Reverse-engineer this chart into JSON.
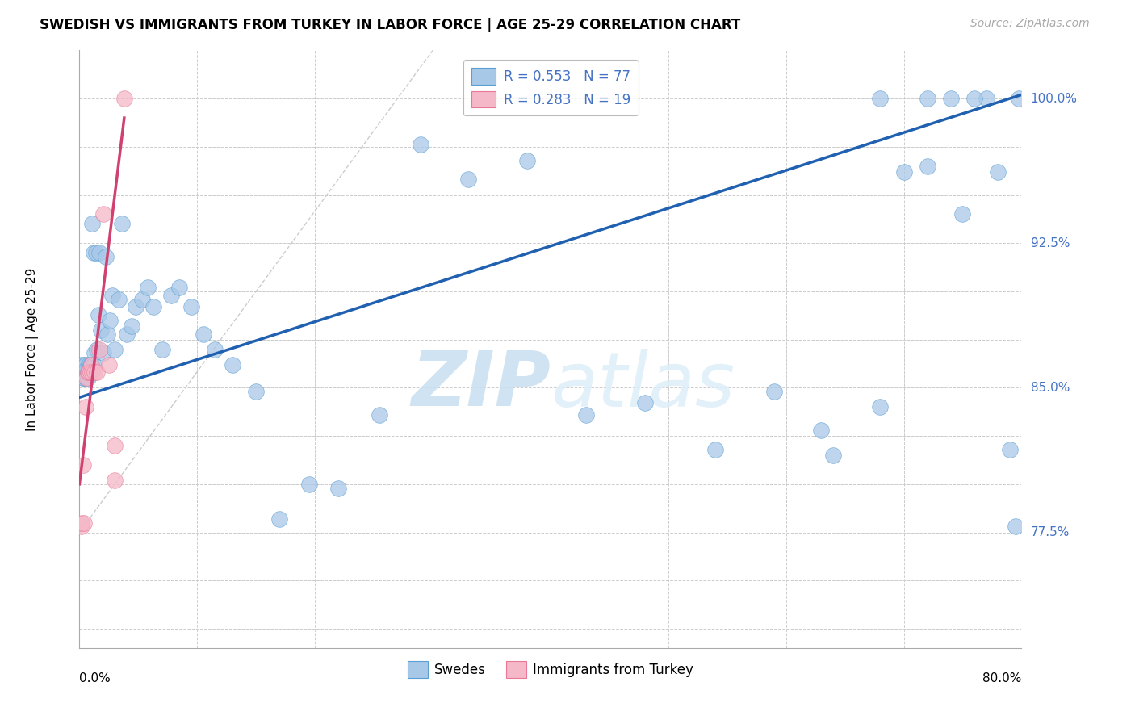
{
  "title": "SWEDISH VS IMMIGRANTS FROM TURKEY IN LABOR FORCE | AGE 25-29 CORRELATION CHART",
  "source": "Source: ZipAtlas.com",
  "ylabel": "In Labor Force | Age 25-29",
  "r_swedish": 0.553,
  "n_swedish": 77,
  "r_turkey": 0.283,
  "n_turkey": 19,
  "watermark_zip": "ZIP",
  "watermark_atlas": "atlas",
  "blue_color": "#a8c8e8",
  "blue_edge": "#5a9fd4",
  "pink_color": "#f5b8c8",
  "pink_edge": "#e87898",
  "blue_trend_color": "#2060b0",
  "pink_trend_color": "#d04070",
  "diag_color": "#cccccc",
  "legend_blue_label": "Swedes",
  "legend_pink_label": "Immigrants from Turkey",
  "xmin": 0.0,
  "xmax": 0.8,
  "ymin": 0.715,
  "ymax": 1.025,
  "yticks_labeled": [
    0.775,
    0.85,
    0.925,
    1.0
  ],
  "ytick_labels": [
    "77.5%",
    "85.0%",
    "92.5%",
    "100.0%"
  ],
  "yticks_all": [
    0.725,
    0.75,
    0.775,
    0.8,
    0.825,
    0.85,
    0.875,
    0.9,
    0.925,
    0.95,
    0.975,
    1.0
  ],
  "xticks_all": [
    0.0,
    0.1,
    0.2,
    0.3,
    0.4,
    0.5,
    0.6,
    0.7,
    0.8
  ],
  "blue_line_x0": 0.0,
  "blue_line_x1": 0.8,
  "blue_line_y0": 0.845,
  "blue_line_y1": 1.002,
  "pink_line_x0": 0.0,
  "pink_line_x1": 0.038,
  "pink_line_y0": 0.8,
  "pink_line_y1": 0.99,
  "diag_line_x0": 0.0,
  "diag_line_x1": 0.3,
  "diag_line_y0": 0.775,
  "diag_line_y1": 1.025,
  "swedish_x": [
    0.002,
    0.002,
    0.003,
    0.003,
    0.003,
    0.004,
    0.004,
    0.004,
    0.005,
    0.005,
    0.005,
    0.006,
    0.006,
    0.007,
    0.007,
    0.008,
    0.008,
    0.009,
    0.01,
    0.01,
    0.011,
    0.012,
    0.012,
    0.013,
    0.014,
    0.015,
    0.016,
    0.017,
    0.018,
    0.02,
    0.022,
    0.024,
    0.026,
    0.028,
    0.03,
    0.033,
    0.036,
    0.04,
    0.044,
    0.048,
    0.053,
    0.058,
    0.063,
    0.07,
    0.078,
    0.085,
    0.095,
    0.105,
    0.115,
    0.13,
    0.15,
    0.17,
    0.195,
    0.22,
    0.255,
    0.29,
    0.33,
    0.38,
    0.43,
    0.48,
    0.54,
    0.59,
    0.64,
    0.68,
    0.72,
    0.75,
    0.77,
    0.78,
    0.79,
    0.795,
    0.63,
    0.68,
    0.7,
    0.72,
    0.74,
    0.76,
    0.798
  ],
  "swedish_y": [
    0.858,
    0.862,
    0.855,
    0.86,
    0.855,
    0.858,
    0.862,
    0.858,
    0.858,
    0.862,
    0.855,
    0.858,
    0.86,
    0.855,
    0.858,
    0.862,
    0.858,
    0.862,
    0.858,
    0.862,
    0.935,
    0.92,
    0.862,
    0.868,
    0.92,
    0.87,
    0.888,
    0.92,
    0.88,
    0.868,
    0.918,
    0.878,
    0.885,
    0.898,
    0.87,
    0.896,
    0.935,
    0.878,
    0.882,
    0.892,
    0.896,
    0.902,
    0.892,
    0.87,
    0.898,
    0.902,
    0.892,
    0.878,
    0.87,
    0.862,
    0.848,
    0.782,
    0.8,
    0.798,
    0.836,
    0.976,
    0.958,
    0.968,
    0.836,
    0.842,
    0.818,
    0.848,
    0.815,
    0.84,
    0.965,
    0.94,
    1.0,
    0.962,
    0.818,
    0.778,
    0.828,
    1.0,
    0.962,
    1.0,
    1.0,
    1.0,
    1.0
  ],
  "turkey_x": [
    0.002,
    0.002,
    0.003,
    0.004,
    0.005,
    0.006,
    0.007,
    0.008,
    0.009,
    0.01,
    0.011,
    0.013,
    0.015,
    0.017,
    0.02,
    0.025,
    0.03,
    0.03,
    0.038
  ],
  "turkey_y": [
    0.778,
    0.78,
    0.81,
    0.78,
    0.84,
    0.855,
    0.858,
    0.858,
    0.858,
    0.862,
    0.858,
    0.858,
    0.858,
    0.87,
    0.94,
    0.862,
    0.802,
    0.82,
    1.0
  ]
}
